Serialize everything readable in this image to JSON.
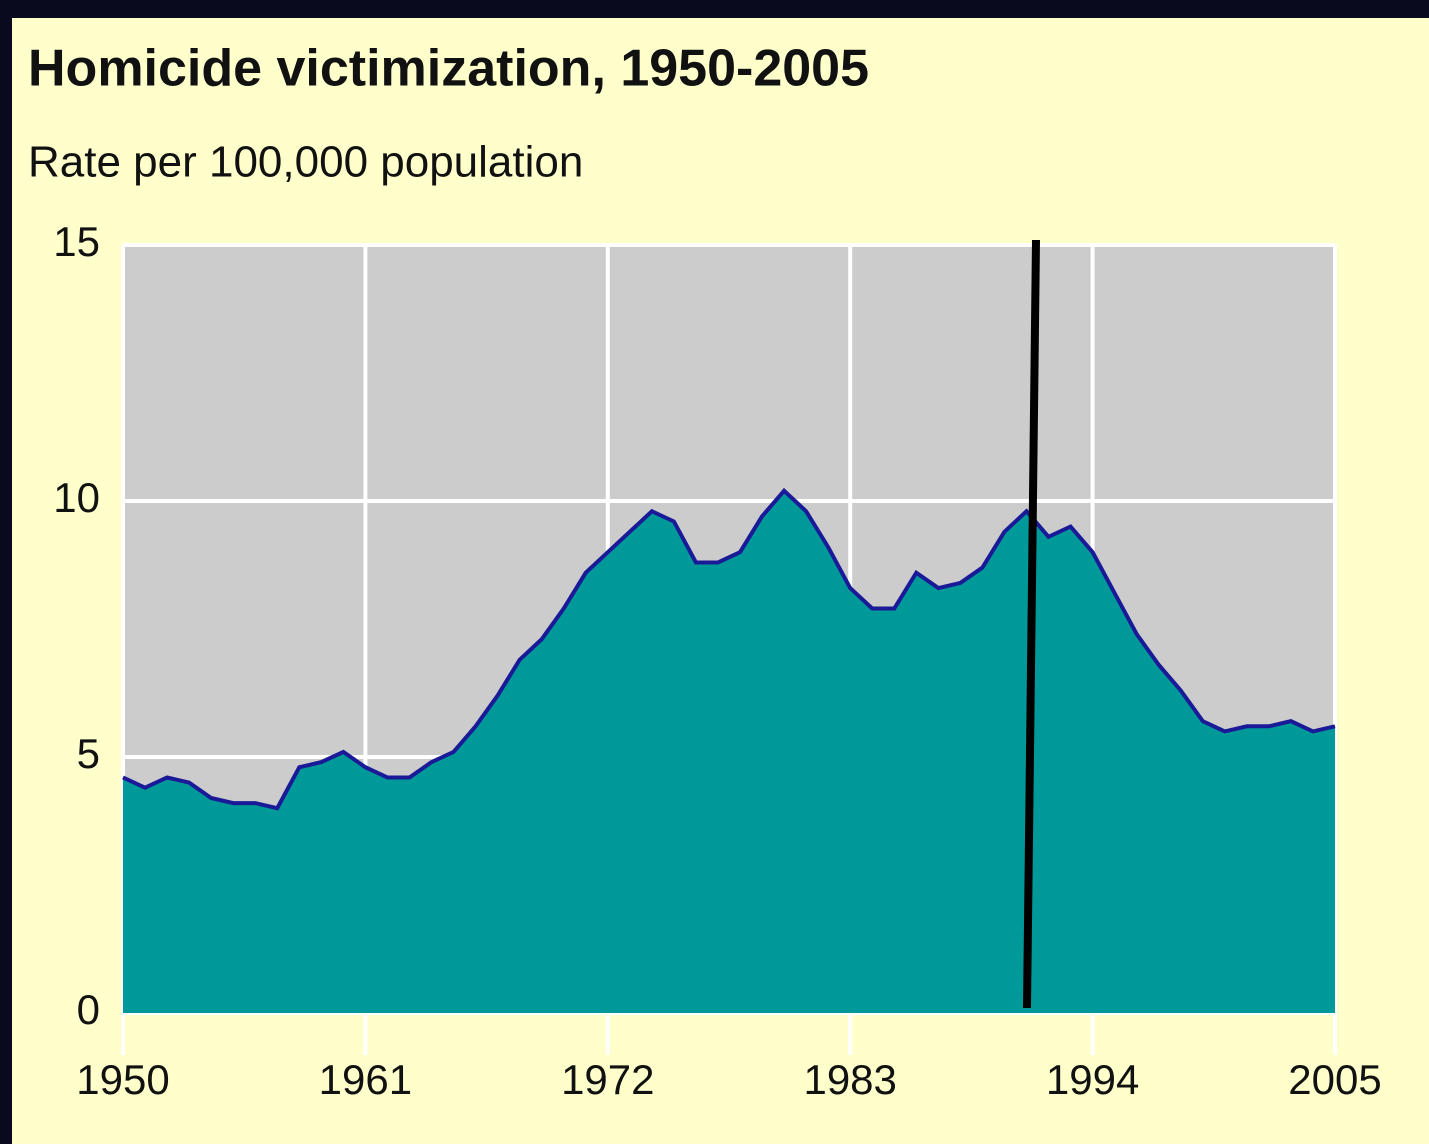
{
  "chart_data": {
    "type": "area",
    "title": "Homicide victimization, 1950-2005",
    "subtitle": "Rate per 100,000 population",
    "x": [
      1950,
      1951,
      1952,
      1953,
      1954,
      1955,
      1956,
      1957,
      1958,
      1959,
      1960,
      1961,
      1962,
      1963,
      1964,
      1965,
      1966,
      1967,
      1968,
      1969,
      1970,
      1971,
      1972,
      1973,
      1974,
      1975,
      1976,
      1977,
      1978,
      1979,
      1980,
      1981,
      1982,
      1983,
      1984,
      1985,
      1986,
      1987,
      1988,
      1989,
      1990,
      1991,
      1992,
      1993,
      1994,
      1995,
      1996,
      1997,
      1998,
      1999,
      2000,
      2001,
      2002,
      2003,
      2004,
      2005
    ],
    "series": [
      {
        "color": "#009999",
        "line_color": "#1a1a99",
        "values": [
          4.6,
          4.4,
          4.6,
          4.5,
          4.2,
          4.1,
          4.1,
          4.0,
          4.8,
          4.9,
          5.1,
          4.8,
          4.6,
          4.6,
          4.9,
          5.1,
          5.6,
          6.2,
          6.9,
          7.3,
          7.9,
          8.6,
          9.0,
          9.4,
          9.8,
          9.6,
          8.8,
          8.8,
          9.0,
          9.7,
          10.2,
          9.8,
          9.1,
          8.3,
          7.9,
          7.9,
          8.6,
          8.3,
          8.4,
          8.7,
          9.4,
          9.8,
          9.3,
          9.5,
          9.0,
          8.2,
          7.4,
          6.8,
          6.3,
          5.7,
          5.5,
          5.6,
          5.6,
          5.7,
          5.5,
          5.6
        ]
      }
    ],
    "xlim": [
      1950,
      2005
    ],
    "xticks": [
      1950,
      1961,
      1972,
      1983,
      1994,
      2005
    ],
    "ylim": [
      0,
      15
    ],
    "yticks": [
      0,
      5,
      10,
      15
    ],
    "grid": true
  }
}
